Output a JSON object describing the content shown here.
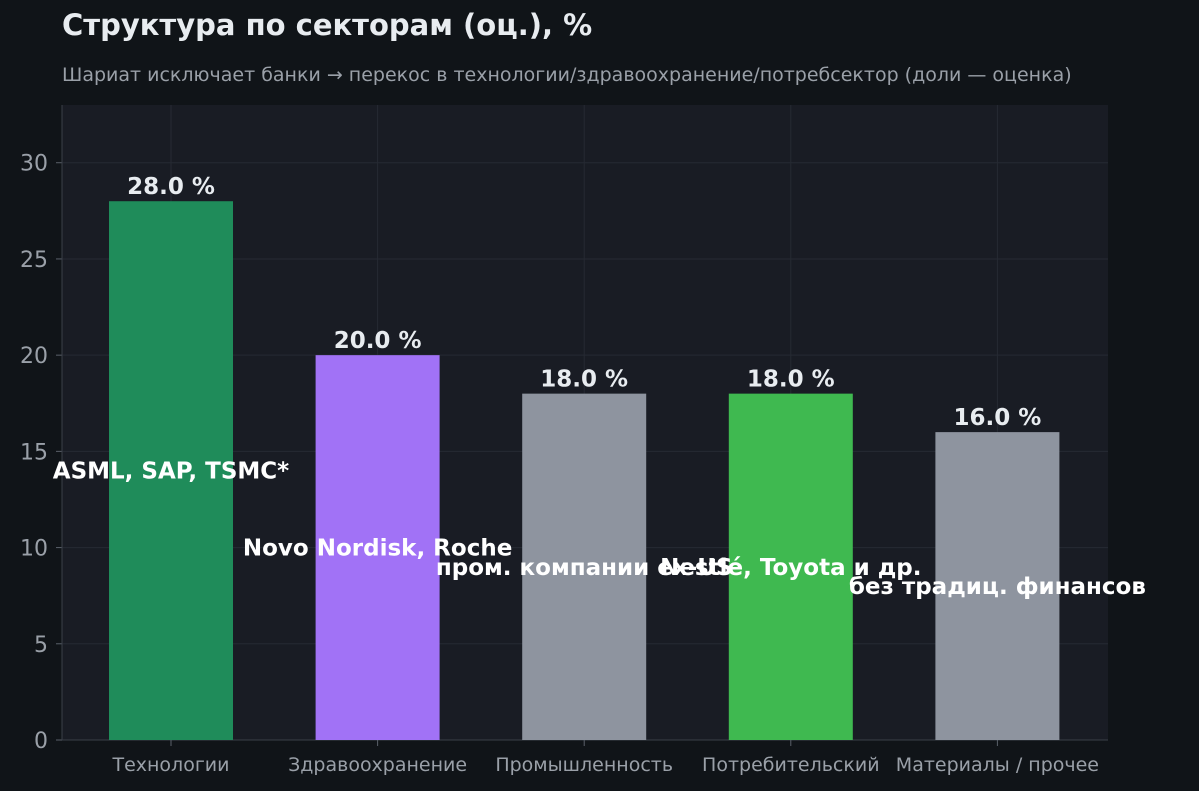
{
  "title": "Структура по секторам (оц.), %",
  "subtitle": "Шариат исключает банки → перекос в технологии/здравоохранение/потребсектор (доли — оценка)",
  "chart_data": {
    "type": "bar",
    "categories": [
      "Технологии",
      "Здравоохранение",
      "Промышленность",
      "Потребительский",
      "Материалы / прочее"
    ],
    "values": [
      28.0,
      20.0,
      18.0,
      18.0,
      16.0
    ],
    "value_labels": [
      "28.0 %",
      "20.0 %",
      "18.0 %",
      "18.0 %",
      "16.0 %"
    ],
    "annotations": [
      {
        "text": "ASML, SAP, TSMC*",
        "x": 0,
        "y": 14
      },
      {
        "text": "Novo Nordisk, Roche",
        "x": 1,
        "y": 10
      },
      {
        "text": "пром. компании ex-US",
        "x": 2,
        "y": 9
      },
      {
        "text": "Nestlé, Toyota и др.",
        "x": 3,
        "y": 9
      },
      {
        "text": "без традиц. финансов",
        "x": 4,
        "y": 8
      }
    ],
    "colors": [
      "#1f8c5a",
      "#a172f6",
      "#8e949f",
      "#3fb950",
      "#8e949f"
    ],
    "yticks": [
      0,
      5,
      10,
      15,
      20,
      25,
      30
    ],
    "ylim": [
      0,
      33
    ],
    "grid": true,
    "xlabel": "",
    "ylabel": ""
  }
}
